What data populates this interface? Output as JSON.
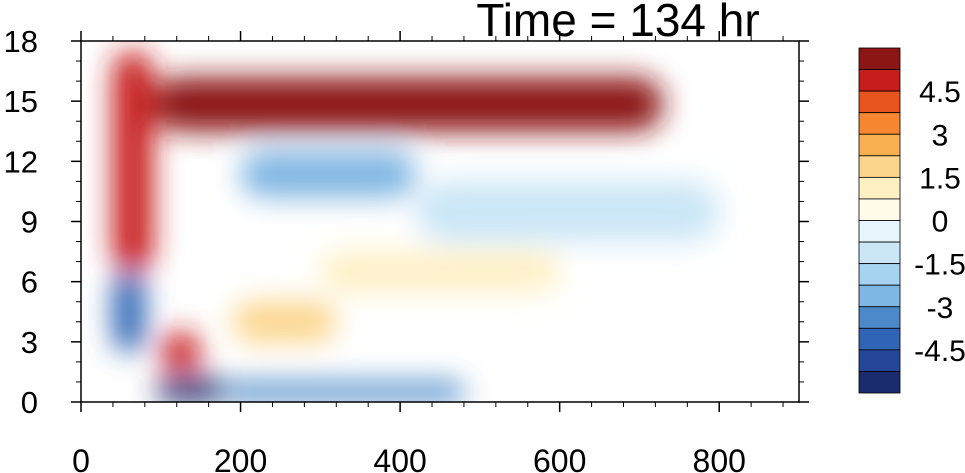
{
  "chart_data": {
    "type": "heatmap",
    "title": "Time = 134 hr",
    "xlabel": "",
    "ylabel": "",
    "xlim": [
      0,
      900
    ],
    "ylim": [
      0,
      18
    ],
    "x_ticks": [
      0,
      200,
      400,
      600,
      800
    ],
    "x_tick_labels": [
      "0",
      "200",
      "400",
      "600",
      "800"
    ],
    "y_ticks": [
      0,
      3,
      6,
      9,
      12,
      15,
      18
    ],
    "y_tick_labels": [
      "0",
      "3",
      "6",
      "9",
      "12",
      "15",
      "18"
    ],
    "colorbar": {
      "min": -6,
      "max": 6,
      "levels": 16,
      "tick_values": [
        4.5,
        3,
        1.5,
        0,
        -1.5,
        -3,
        -4.5
      ],
      "tick_labels": [
        "4.5",
        "3",
        "1.5",
        "0",
        "-1.5",
        "-3",
        "-4.5"
      ],
      "colors": [
        "#1a2c6e",
        "#24479a",
        "#2f65b4",
        "#4b89c8",
        "#7fb6e3",
        "#a6d3f0",
        "#cae6f7",
        "#e9f5fc",
        "#fffaea",
        "#fff0c4",
        "#fcd58c",
        "#f9b051",
        "#f6862f",
        "#e9531e",
        "#c71d1c",
        "#8c1515"
      ]
    },
    "features": [
      {
        "x": [
          90,
          730
        ],
        "y": [
          13.5,
          16.2
        ],
        "value": 5.8
      },
      {
        "x": [
          95,
          180
        ],
        "y": [
          0,
          1.2
        ],
        "value": -5.5
      },
      {
        "x": [
          180,
          480
        ],
        "y": [
          0,
          1.0
        ],
        "value": -3.5
      },
      {
        "x": [
          190,
          320
        ],
        "y": [
          3.0,
          5.0
        ],
        "value": 2.2
      },
      {
        "x": [
          200,
          420
        ],
        "y": [
          10.2,
          12.5
        ],
        "value": -2.8
      },
      {
        "x": [
          420,
          800
        ],
        "y": [
          8.0,
          11.0
        ],
        "value": -1.3
      },
      {
        "x": [
          300,
          600
        ],
        "y": [
          5.5,
          7.5
        ],
        "value": 0.9
      },
      {
        "x": [
          40,
          90
        ],
        "y": [
          6.5,
          17.5
        ],
        "value": 5.0
      },
      {
        "x": [
          40,
          80
        ],
        "y": [
          2.5,
          6.5
        ],
        "value": -4.0
      },
      {
        "x": [
          100,
          150
        ],
        "y": [
          1.5,
          3.5
        ],
        "value": 4.5
      }
    ]
  }
}
